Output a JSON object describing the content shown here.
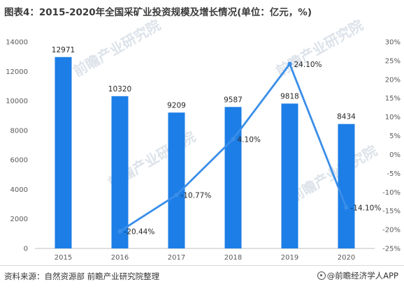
{
  "chart_data": {
    "type": "bar+line",
    "title": "图表4：2015-2020年全国采矿业投资规模及增长情况(单位：亿元，%)",
    "categories": [
      "2015",
      "2016",
      "2017",
      "2018",
      "2019",
      "2020"
    ],
    "series": [
      {
        "type": "bar",
        "axis": "left",
        "color": "#1c7ee6",
        "values": [
          12971,
          10320,
          9209,
          9587,
          9818,
          8434
        ],
        "labels": [
          "12971",
          "10320",
          "9209",
          "9587",
          "9818",
          "8434"
        ]
      },
      {
        "type": "line",
        "axis": "right",
        "color": "#3a8ee8",
        "values": [
          -20.44,
          -10.77,
          4.1,
          24.1,
          -14.1
        ],
        "x": [
          "2016",
          "2017",
          "2018",
          "2019",
          "2020"
        ],
        "labels": [
          "-20.44%",
          "-10.77%",
          "4.10%",
          "24.10%",
          "-14.10%"
        ]
      }
    ],
    "y_left": {
      "min": 0,
      "max": 14000,
      "step": 2000,
      "ticks": [
        "0",
        "2000",
        "4000",
        "6000",
        "8000",
        "10000",
        "12000",
        "14000"
      ]
    },
    "y_right": {
      "min": -25,
      "max": 30,
      "step": 5,
      "ticks": [
        "-25%",
        "-20%",
        "-15%",
        "-10%",
        "-5%",
        "0%",
        "5%",
        "10%",
        "15%",
        "20%",
        "25%",
        "30%"
      ]
    },
    "grid": false,
    "legend": "none"
  },
  "footer": {
    "source": "资料来源：自然资源部 前瞻产业研究院整理",
    "brand": "@前瞻经济学人APP"
  },
  "watermark": "前瞻产业研究院"
}
